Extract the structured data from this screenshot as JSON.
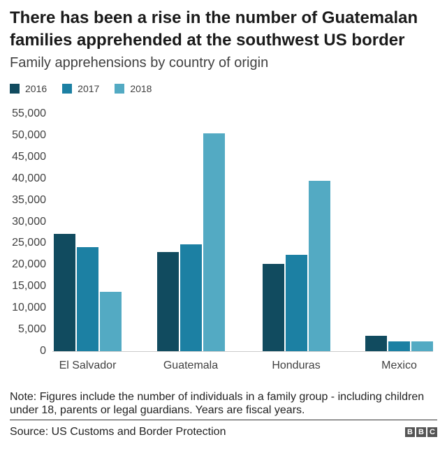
{
  "chart_data": {
    "type": "bar",
    "title": "There has been a rise in the number of Guatemalan families apprehended at the southwest US border",
    "subtitle": "Family apprehensions by country of origin",
    "categories": [
      "El Salvador",
      "Guatemala",
      "Honduras",
      "Mexico"
    ],
    "series": [
      {
        "name": "2016",
        "color": "#114b5f",
        "values": [
          27100,
          23000,
          20200,
          3500
        ]
      },
      {
        "name": "2017",
        "color": "#1c80a3",
        "values": [
          24100,
          24700,
          22400,
          2200
        ]
      },
      {
        "name": "2018",
        "color": "#53aac3",
        "values": [
          13700,
          50400,
          39400,
          2300
        ]
      }
    ],
    "xlabel": "",
    "ylabel": "",
    "ylim": [
      0,
      55000
    ],
    "ytick_step": 5000,
    "ytick_labels": [
      "0",
      "5,000",
      "10,000",
      "15,000",
      "20,000",
      "25,000",
      "30,000",
      "35,000",
      "40,000",
      "45,000",
      "50,000",
      "55,000"
    ],
    "grid": false,
    "legend_position": "top",
    "axis_line_color": "#cccccc"
  },
  "footer": {
    "note": "Note: Figures include the number of individuals in a family group - including children under 18, parents or legal guardians. Years are fiscal years.",
    "source": "Source: US Customs and Border Protection",
    "logo": [
      "B",
      "B",
      "C"
    ]
  }
}
